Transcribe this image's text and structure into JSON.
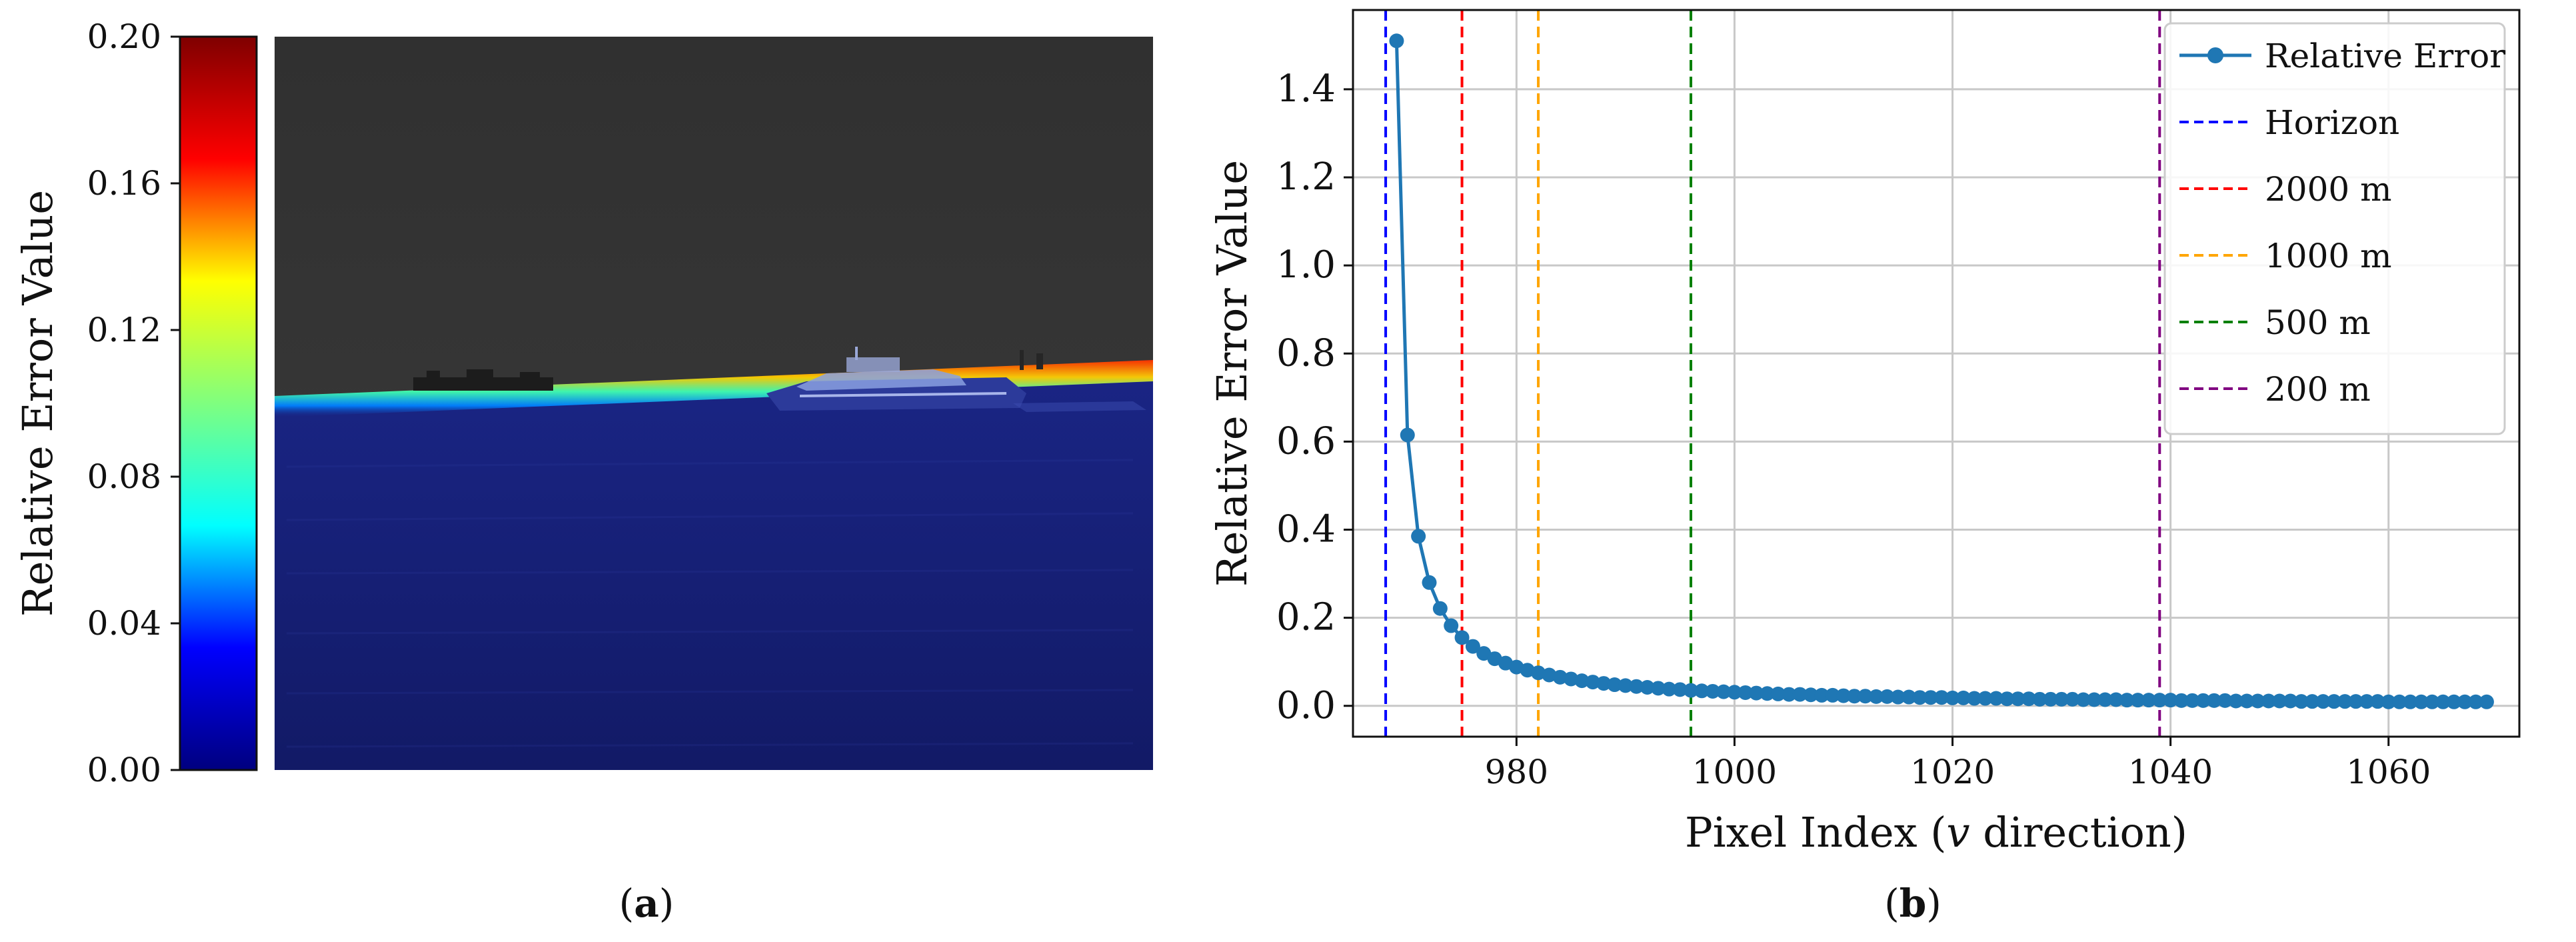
{
  "panels": {
    "a": {
      "caption_prefix": "(",
      "caption_letter": "a",
      "caption_suffix": ")"
    },
    "b": {
      "caption_prefix": "(",
      "caption_letter": "b",
      "caption_suffix": ")"
    }
  },
  "chart_data": [
    {
      "type": "heatmap",
      "panel": "a",
      "colorbar": {
        "label": "Relative Error Value",
        "range": [
          0.0,
          0.2
        ],
        "ticks": [
          0.0,
          0.04,
          0.08,
          0.12,
          0.16,
          0.2
        ],
        "tick_labels": [
          "0.00",
          "0.04",
          "0.08",
          "0.12",
          "0.16",
          "0.20"
        ],
        "colormap": "jet",
        "colors": [
          "#00007f",
          "#0000ff",
          "#00ffff",
          "#7fff7f",
          "#ffff00",
          "#ff0000",
          "#7f0000"
        ]
      },
      "image_content": "ship on sea with horizon; relative error overlay near 0.00 (dark blue) below horizon, high values at horizon line",
      "colors": {
        "sky": "#363636",
        "sea": "#151e72"
      }
    },
    {
      "type": "line",
      "panel": "b",
      "xlabel_parts": [
        "Pixel Index (",
        "v",
        " direction)"
      ],
      "ylabel": "Relative Error Value",
      "xlim": [
        965,
        1072
      ],
      "ylim": [
        -0.07,
        1.58
      ],
      "xticks": [
        980,
        1000,
        1020,
        1040,
        1060
      ],
      "yticks": [
        0.0,
        0.2,
        0.4,
        0.6,
        0.8,
        1.0,
        1.2,
        1.4
      ],
      "ytick_labels": [
        "0.0",
        "0.2",
        "0.4",
        "0.6",
        "0.8",
        "1.0",
        "1.2",
        "1.4"
      ],
      "grid": true,
      "legend": "top-right",
      "series": [
        {
          "name": "Relative Error",
          "color": "#1f77b4",
          "x": [
            969,
            970,
            971,
            972,
            973,
            974,
            975,
            976,
            977,
            978,
            979,
            980,
            981,
            982,
            983,
            984,
            985,
            986,
            987,
            988,
            989,
            990,
            991,
            992,
            993,
            994,
            995,
            996,
            997,
            998,
            999,
            1000,
            1001,
            1002,
            1003,
            1004,
            1005,
            1006,
            1007,
            1008,
            1009,
            1010,
            1011,
            1012,
            1013,
            1014,
            1015,
            1016,
            1017,
            1018,
            1019,
            1020,
            1021,
            1022,
            1023,
            1024,
            1025,
            1026,
            1027,
            1028,
            1029,
            1030,
            1031,
            1032,
            1033,
            1034,
            1035,
            1036,
            1037,
            1038,
            1039,
            1040,
            1041,
            1042,
            1043,
            1044,
            1045,
            1046,
            1047,
            1048,
            1049,
            1050,
            1051,
            1052,
            1053,
            1054,
            1055,
            1056,
            1057,
            1058,
            1059,
            1060,
            1061,
            1062,
            1063,
            1064,
            1065,
            1066,
            1067,
            1068,
            1069
          ],
          "y": [
            1.51,
            0.615,
            0.385,
            0.28,
            0.221,
            0.182,
            0.155,
            0.135,
            0.119,
            0.107,
            0.097,
            0.088,
            0.081,
            0.075,
            0.07,
            0.065,
            0.061,
            0.057,
            0.054,
            0.051,
            0.048,
            0.046,
            0.044,
            0.042,
            0.04,
            0.038,
            0.037,
            0.035,
            0.034,
            0.033,
            0.032,
            0.031,
            0.03,
            0.029,
            0.028,
            0.027,
            0.026,
            0.026,
            0.025,
            0.024,
            0.024,
            0.023,
            0.022,
            0.022,
            0.021,
            0.021,
            0.02,
            0.02,
            0.019,
            0.019,
            0.019,
            0.018,
            0.018,
            0.017,
            0.017,
            0.017,
            0.016,
            0.016,
            0.016,
            0.015,
            0.015,
            0.015,
            0.015,
            0.014,
            0.014,
            0.014,
            0.014,
            0.013,
            0.013,
            0.013,
            0.013,
            0.013,
            0.012,
            0.012,
            0.012,
            0.012,
            0.012,
            0.011,
            0.011,
            0.011,
            0.011,
            0.011,
            0.011,
            0.01,
            0.01,
            0.01,
            0.01,
            0.01,
            0.01,
            0.01,
            0.01,
            0.009,
            0.009,
            0.009,
            0.009,
            0.009,
            0.009,
            0.009,
            0.009,
            0.009,
            0.009
          ]
        }
      ],
      "vlines": [
        {
          "name": "Horizon",
          "x": 968,
          "color": "#0000ff"
        },
        {
          "name": "2000 m",
          "x": 975,
          "color": "#ff0000"
        },
        {
          "name": "1000 m",
          "x": 982,
          "color": "#ffa500"
        },
        {
          "name": "500 m",
          "x": 996,
          "color": "#008000"
        },
        {
          "name": "200 m",
          "x": 1039,
          "color": "#800080"
        }
      ]
    }
  ]
}
